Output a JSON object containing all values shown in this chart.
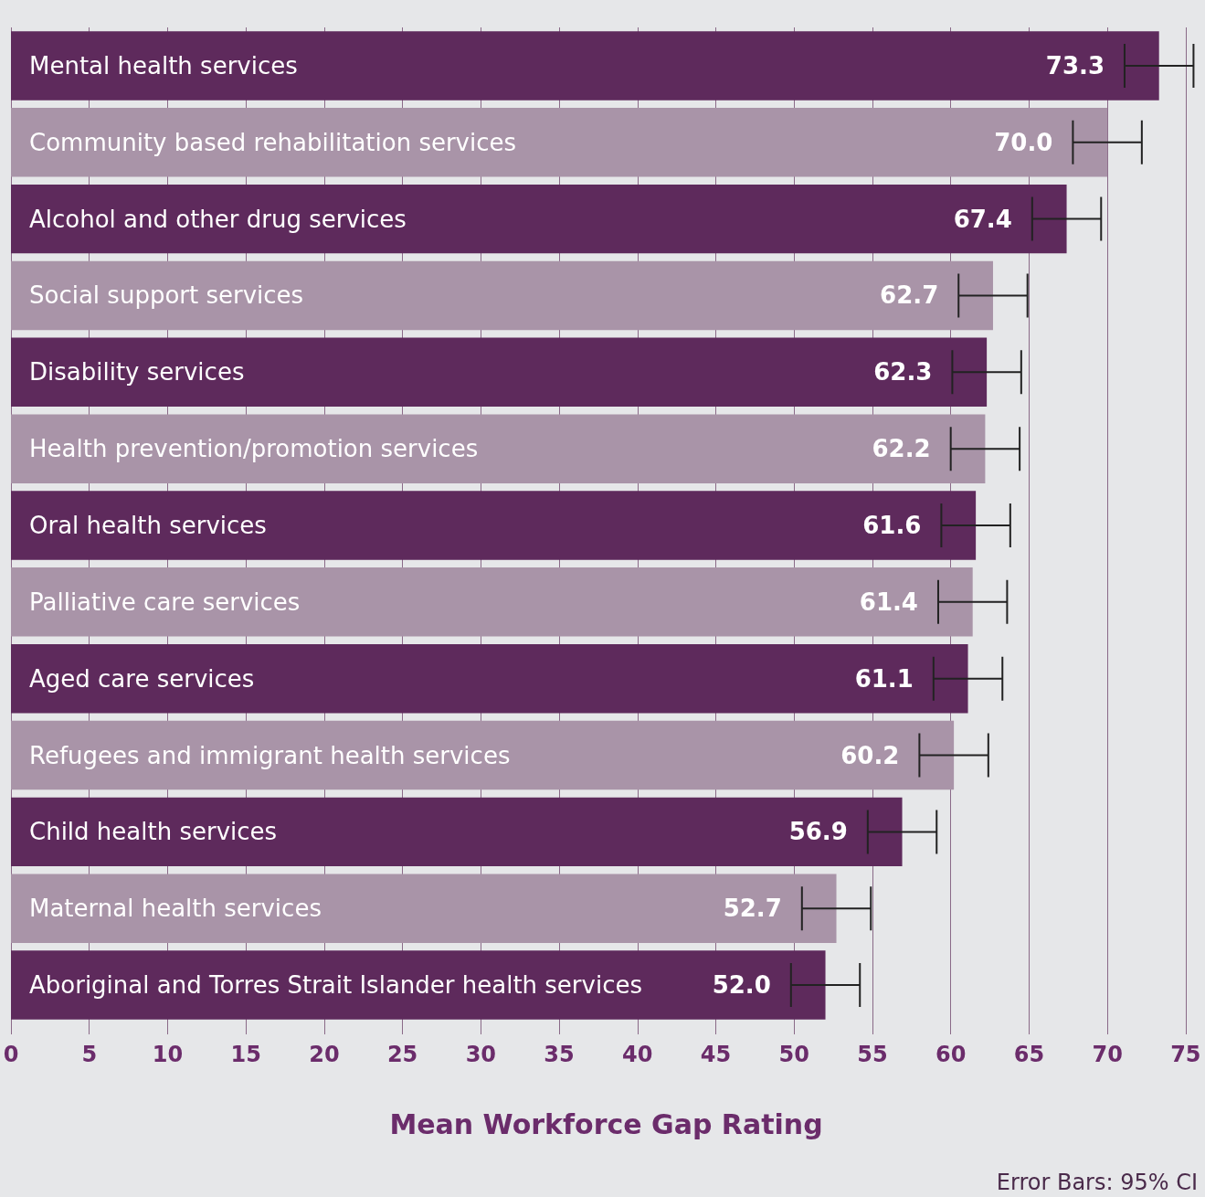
{
  "chart_data": {
    "type": "bar",
    "orientation": "horizontal",
    "xlabel": "Mean Workforce Gap Rating",
    "categories": [
      "Mental health services",
      "Community based rehabilitation services",
      "Alcohol and other drug services",
      "Social support services",
      "Disability services",
      "Health prevention/promotion services",
      "Oral health services",
      "Palliative care services",
      "Aged care services",
      "Refugees and immigrant health services",
      "Child health services",
      "Maternal health services",
      "Aboriginal and Torres Strait Islander health services"
    ],
    "values": [
      73.3,
      70.0,
      67.4,
      62.7,
      62.3,
      62.2,
      61.6,
      61.4,
      61.1,
      60.2,
      56.9,
      52.7,
      52.0
    ],
    "value_labels": [
      "73.3",
      "70.0",
      "67.4",
      "62.7",
      "62.3",
      "62.2",
      "61.6",
      "61.4",
      "61.1",
      "60.2",
      "56.9",
      "52.7",
      "52.0"
    ],
    "errors": [
      2.2,
      2.2,
      2.2,
      2.2,
      2.2,
      2.2,
      2.2,
      2.2,
      2.2,
      2.2,
      2.2,
      2.2,
      2.2
    ],
    "colors": [
      "#5e2a5c",
      "#a994a8",
      "#5e2a5c",
      "#a994a8",
      "#5e2a5c",
      "#a994a8",
      "#5e2a5c",
      "#a994a8",
      "#5e2a5c",
      "#a994a8",
      "#5e2a5c",
      "#a994a8",
      "#5e2a5c"
    ],
    "xlim": [
      0,
      76
    ],
    "xticks": [
      0,
      5,
      10,
      15,
      20,
      25,
      30,
      35,
      40,
      45,
      50,
      55,
      60,
      65,
      70,
      75
    ],
    "grid": "x",
    "tick_labels": "x",
    "annotations": [
      "Error Bars: 95% CI"
    ]
  }
}
